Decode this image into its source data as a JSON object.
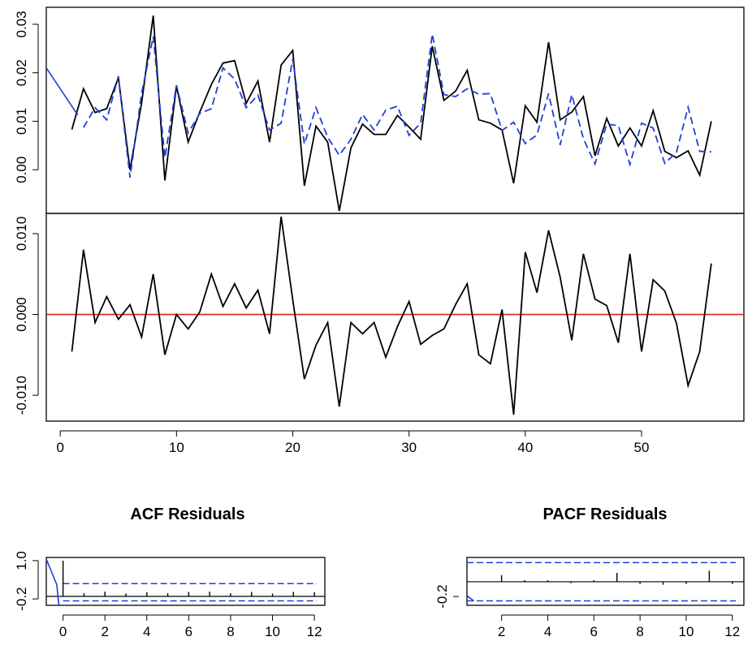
{
  "colors": {
    "actual": "#000000",
    "fitted": "#1f3fd6",
    "zero_line": "#e0201b",
    "acf": "#000000"
  },
  "chart_data": [
    {
      "type": "line",
      "id": "fit",
      "ylim": [
        -0.009,
        0.0335
      ],
      "xlim": [
        -1.2,
        58.8
      ],
      "y_ticks": [
        {
          "value": 0.0,
          "label": "0.00"
        },
        {
          "value": 0.01,
          "label": "0.01"
        },
        {
          "value": 0.02,
          "label": "0.02"
        },
        {
          "value": 0.03,
          "label": "0.03"
        }
      ],
      "series": [
        {
          "style": "solid-black",
          "x": [
            1,
            2,
            3,
            4,
            5,
            6,
            7,
            8,
            9,
            10,
            11,
            12,
            13,
            14,
            15,
            16,
            17,
            18,
            19,
            20,
            21,
            22,
            23,
            24,
            25,
            26,
            27,
            28,
            29,
            30,
            31,
            32,
            33,
            34,
            35,
            36,
            37,
            38,
            39,
            40,
            41,
            42,
            43,
            44,
            45,
            46,
            47,
            48,
            49,
            50,
            51,
            52,
            53,
            54,
            55,
            56
          ],
          "values": [
            0.0083,
            0.0167,
            0.0118,
            0.0126,
            0.019,
            0.0,
            0.0138,
            0.0318,
            -0.0022,
            0.0173,
            0.0057,
            0.0119,
            0.0176,
            0.022,
            0.0225,
            0.0137,
            0.0183,
            0.0057,
            0.0216,
            0.0246,
            -0.0033,
            0.009,
            0.0057,
            -0.0085,
            0.0045,
            0.0094,
            0.0073,
            0.0073,
            0.0112,
            0.0088,
            0.0063,
            0.0255,
            0.0143,
            0.0162,
            0.0205,
            0.0103,
            0.0096,
            0.0082,
            -0.0028,
            0.0132,
            0.0098,
            0.0263,
            0.0103,
            0.0119,
            0.0151,
            0.0029,
            0.0106,
            0.0049,
            0.0086,
            0.0049,
            0.0122,
            0.0038,
            0.0025,
            0.0039,
            -0.0011,
            0.01
          ]
        },
        {
          "style": "dashed-blue",
          "x": [
            2,
            3,
            4,
            5,
            6,
            7,
            8,
            9,
            10,
            11,
            12,
            13,
            14,
            15,
            16,
            17,
            18,
            19,
            20,
            21,
            22,
            23,
            24,
            25,
            26,
            27,
            28,
            29,
            30,
            31,
            32,
            33,
            34,
            35,
            36,
            37,
            38,
            39,
            40,
            41,
            42,
            43,
            44,
            45,
            46,
            47,
            48,
            49,
            50,
            51,
            52,
            53,
            54,
            55,
            56
          ],
          "values": [
            0.0087,
            0.0128,
            0.0103,
            0.0193,
            -0.0016,
            0.0158,
            0.0275,
            0.0025,
            0.0174,
            0.0076,
            0.0116,
            0.0126,
            0.021,
            0.0187,
            0.0128,
            0.0154,
            0.0082,
            0.0096,
            0.0228,
            0.0053,
            0.0128,
            0.0067,
            0.003,
            0.0063,
            0.0114,
            0.0082,
            0.0123,
            0.0131,
            0.0071,
            0.0096,
            0.028,
            0.0155,
            0.0151,
            0.0167,
            0.0156,
            0.0157,
            0.0081,
            0.0098,
            0.0054,
            0.0072,
            0.0157,
            0.0051,
            0.0155,
            0.0064,
            0.0012,
            0.0094,
            0.0091,
            0.0011,
            0.0096,
            0.0086,
            0.0013,
            0.0036,
            0.0129,
            0.0038,
            0.0037
          ]
        },
        {
          "style": "solid-blue",
          "x": [
            -1.2,
            1.5
          ],
          "values": [
            0.021,
            0.0113
          ]
        }
      ]
    },
    {
      "type": "line",
      "id": "residuals",
      "ylim": [
        -0.0132,
        0.0125
      ],
      "xlim": [
        -1.2,
        58.8
      ],
      "y_ticks": [
        {
          "value": 0.01,
          "label": "0.010"
        },
        {
          "value": 0.0,
          "label": "0.000"
        },
        {
          "value": -0.01,
          "label": "-0.010"
        }
      ],
      "x_ticks": [
        {
          "value": 0,
          "label": "0"
        },
        {
          "value": 10,
          "label": "10"
        },
        {
          "value": 20,
          "label": "20"
        },
        {
          "value": 30,
          "label": "30"
        },
        {
          "value": 40,
          "label": "40"
        },
        {
          "value": 50,
          "label": "50"
        }
      ],
      "reference_line": 0,
      "series": [
        {
          "style": "solid-black",
          "x": [
            1,
            2,
            3,
            4,
            5,
            6,
            7,
            8,
            9,
            10,
            11,
            12,
            13,
            14,
            15,
            16,
            17,
            18,
            19,
            20,
            21,
            22,
            23,
            24,
            25,
            26,
            27,
            28,
            29,
            30,
            31,
            32,
            33,
            34,
            35,
            36,
            37,
            38,
            39,
            40,
            41,
            42,
            43,
            44,
            45,
            46,
            47,
            48,
            49,
            50,
            51,
            52,
            53,
            54,
            55,
            56
          ],
          "values": [
            -0.0046,
            0.008,
            -0.001,
            0.0022,
            -0.0006,
            0.0012,
            -0.0028,
            0.005,
            -0.005,
            0.0,
            -0.0018,
            0.0003,
            0.005,
            0.001,
            0.0038,
            0.0008,
            0.003,
            -0.0024,
            0.0121,
            0.0018,
            -0.008,
            -0.0038,
            -0.001,
            -0.0114,
            -0.001,
            -0.0024,
            -0.001,
            -0.0053,
            -0.0015,
            0.0016,
            -0.0037,
            -0.0026,
            -0.0018,
            0.0012,
            0.0038,
            -0.005,
            -0.0061,
            0.0006,
            -0.0124,
            0.0077,
            0.0027,
            0.0104,
            0.0046,
            -0.0032,
            0.0075,
            0.0019,
            0.0011,
            -0.0035,
            0.0075,
            -0.0046,
            0.0043,
            0.0029,
            -0.0011,
            -0.0088,
            -0.0046,
            0.0063
          ]
        }
      ]
    },
    {
      "type": "bar",
      "id": "acf",
      "title": "ACF Residuals",
      "ylim": [
        -0.4,
        1.1
      ],
      "xlim": [
        -0.8,
        12.5
      ],
      "y_ticks": [
        {
          "value": 1.0,
          "label": "1.0"
        },
        {
          "value": -0.2,
          "label": "-0.2"
        }
      ],
      "x_ticks": [
        {
          "value": 0,
          "label": "0"
        },
        {
          "value": 2,
          "label": "2"
        },
        {
          "value": 4,
          "label": "4"
        },
        {
          "value": 6,
          "label": "6"
        },
        {
          "value": 8,
          "label": "8"
        },
        {
          "value": 10,
          "label": "10"
        },
        {
          "value": 12,
          "label": "12"
        }
      ],
      "lags": [
        0,
        1,
        2,
        3,
        4,
        5,
        6,
        7,
        8,
        9,
        10,
        11,
        12
      ],
      "values": [
        1.0,
        -0.02,
        0.03,
        -0.03,
        0.01,
        -0.02,
        0.02,
        0.03,
        -0.02,
        0.02,
        -0.03,
        0.02,
        0.01
      ],
      "confidence_bounds": [
        0.28,
        -0.26
      ],
      "zero_line": -0.12,
      "overlay": {
        "x": [
          -0.8,
          -0.3,
          -0.2
        ],
        "values": [
          1.05,
          0.25,
          -0.4
        ]
      }
    },
    {
      "type": "bar",
      "id": "pacf",
      "title": "PACF Residuals",
      "ylim": [
        -0.32,
        0.33
      ],
      "xlim": [
        0.5,
        12.5
      ],
      "y_ticks": [
        {
          "value": -0.2,
          "label": "-0.2"
        }
      ],
      "x_ticks": [
        {
          "value": 2,
          "label": "2"
        },
        {
          "value": 4,
          "label": "4"
        },
        {
          "value": 6,
          "label": "6"
        },
        {
          "value": 8,
          "label": "8"
        },
        {
          "value": 10,
          "label": "10"
        },
        {
          "value": 12,
          "label": "12"
        }
      ],
      "lags": [
        1,
        2,
        3,
        4,
        5,
        6,
        7,
        8,
        9,
        10,
        11,
        12
      ],
      "values": [
        0.0,
        0.09,
        0.02,
        0.02,
        -0.02,
        0.02,
        0.12,
        -0.03,
        -0.04,
        -0.03,
        0.15,
        -0.03
      ],
      "confidence_bounds": [
        0.26,
        -0.26
      ],
      "zero_line": 0.0,
      "overlay": {
        "x": [
          0.5,
          0.8
        ],
        "values": [
          -0.19,
          -0.26
        ]
      }
    }
  ]
}
